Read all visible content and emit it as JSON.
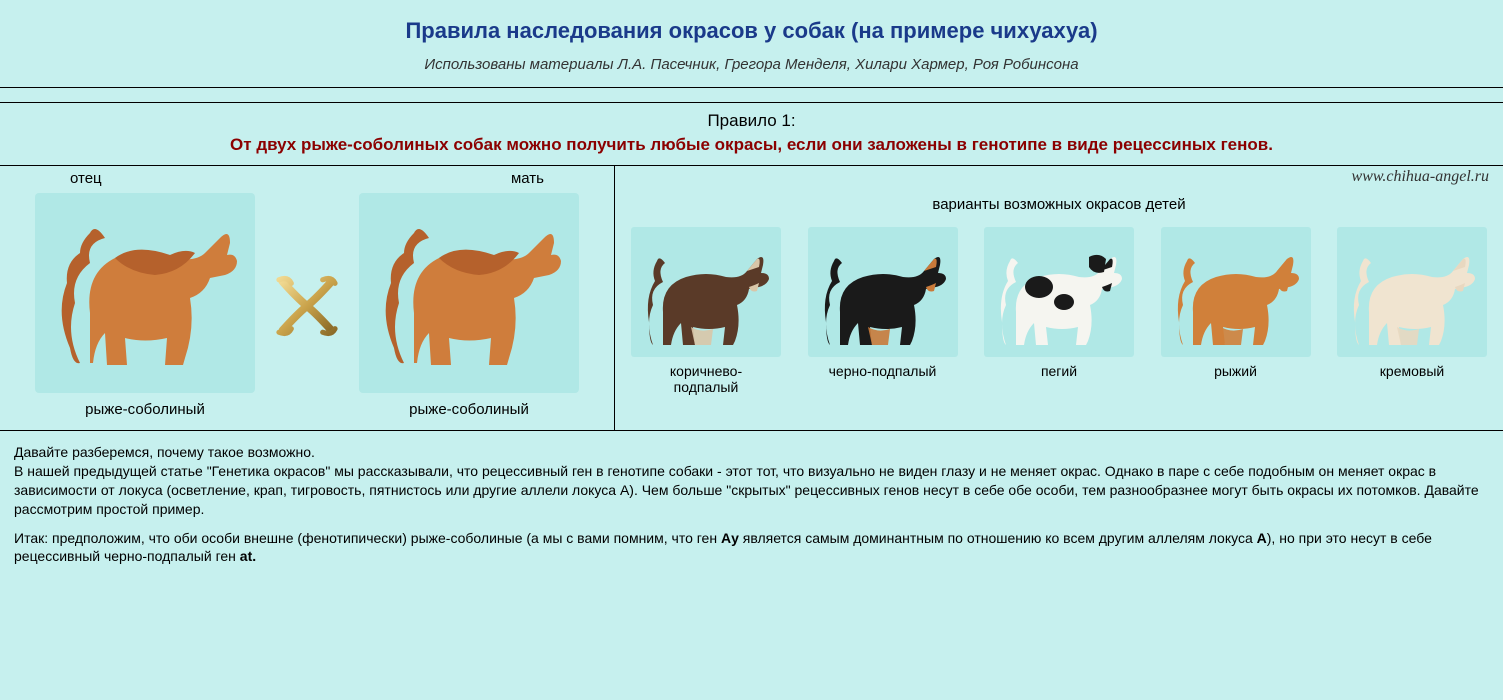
{
  "colors": {
    "page_bg": "#c6f0ee",
    "tile_bg": "#b0e8e6",
    "title_color": "#1a3a8a",
    "rule_color": "#8b0000",
    "border_color": "#000000",
    "text_color": "#000000"
  },
  "typography": {
    "title_fontsize": 22,
    "subtitle_fontsize": 15,
    "rule_fontsize": 17,
    "caption_fontsize": 15,
    "body_fontsize": 14,
    "font_family": "Arial"
  },
  "title": "Правила наследования окрасов у собак (на примере чихуахуа)",
  "subtitle": "Использованы материалы Л.А. Пасечник, Грегора Менделя, Хилари Хармер, Роя Робинсона",
  "rule": {
    "number": "Правило 1:",
    "text": "От двух рыже-соболиных собак можно получить любые окрасы, если они заложены в генотипе в виде рецессиных генов."
  },
  "parents": {
    "father_label": "отец",
    "mother_label": "мать",
    "father_caption": "рыже-соболиный",
    "mother_caption": "рыже-соболиный",
    "father_color": "#c97a3a",
    "mother_color": "#c97a3a",
    "cross_symbol_color": "#c9a24a"
  },
  "offspring": {
    "watermark": "www.chihua-angel.ru",
    "title": "варианты возможных окрасов детей",
    "items": [
      {
        "caption": "коричнево-\nподпалый",
        "body_color": "#5a3a28",
        "accent_color": "#d9c6a8",
        "spots": false
      },
      {
        "caption": "черно-подпалый",
        "body_color": "#1a1a1a",
        "accent_color": "#c97a3a",
        "spots": false
      },
      {
        "caption": "пегий",
        "body_color": "#f5f5f0",
        "accent_color": "#1a1a1a",
        "spots": true
      },
      {
        "caption": "рыжий",
        "body_color": "#d0803a",
        "accent_color": "#d0803a",
        "spots": false
      },
      {
        "caption": "кремовый",
        "body_color": "#f0e4d0",
        "accent_color": "#e8d8c0",
        "spots": false
      }
    ]
  },
  "explanation": {
    "p1a": "Давайте разберемся, почему такое возможно.",
    "p1b": "В нашей предыдущей статье \"Генетика окрасов\" мы рассказывали, что рецессивный ген в генотипе собаки - этот тот, что визуально не виден глазу и не меняет окрас. Однако в паре с себе подобным он меняет окрас в зависимости от локуса (осветление, крап, тигровость, пятнистось или другие аллели локуса А). Чем больше \"скрытых\" рецессивных генов несут в себе обе особи, тем разнообразнее могут быть окрасы их потомков. Давайте рассмотрим простой пример.",
    "p2_pre": "Итак: предположим, что оби особи внешне (фенотипически) рыже-соболиные (а мы с вами помним, что ген ",
    "p2_gene1": "Aу",
    "p2_mid": " является самым доминантным по отношению ко всем другим аллелям локуса ",
    "p2_gene2": "A",
    "p2_post": "), но при это несут в себе рецессивный черно-подпалый ген ",
    "p2_gene3": "at."
  }
}
